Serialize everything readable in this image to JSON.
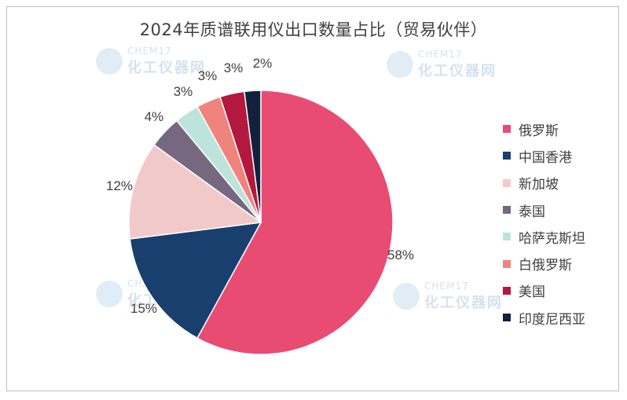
{
  "watermark": {
    "brand": "CHEM17",
    "slogan": "化工仪器网"
  },
  "chart_data": {
    "type": "pie",
    "title": "2024年质谱联用仪出口数量占比（贸易伙伴）",
    "categories": [
      "俄罗斯",
      "中国香港",
      "新加坡",
      "泰国",
      "哈萨克斯坦",
      "白俄罗斯",
      "美国",
      "印度尼西亚"
    ],
    "values": [
      58,
      15,
      12,
      4,
      3,
      3,
      3,
      2
    ],
    "labels": [
      "58%",
      "15%",
      "12%",
      "4%",
      "3%",
      "3%",
      "3%",
      "2%"
    ],
    "colors": [
      "#e84c72",
      "#183f6e",
      "#f2c9c9",
      "#76687f",
      "#bde3dd",
      "#f0847d",
      "#b3183f",
      "#14213d"
    ],
    "legend_position": "right"
  }
}
